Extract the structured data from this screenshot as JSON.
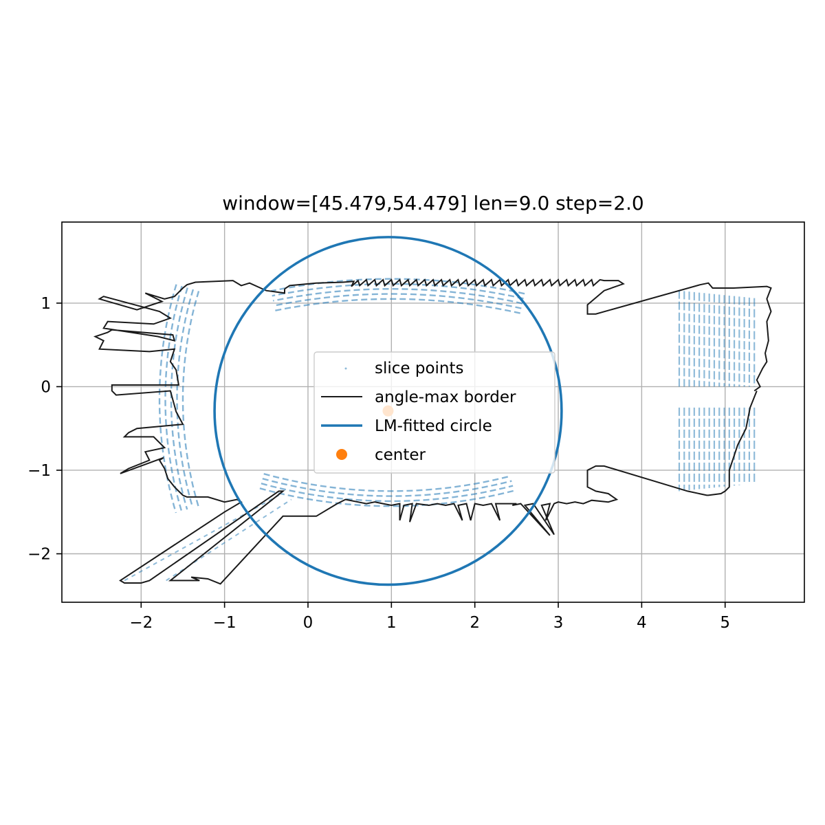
{
  "chart_data": {
    "type": "scatter",
    "title": "window=[45.479,54.479] len=9.0  step=2.0",
    "xlabel": "",
    "ylabel": "",
    "xlim": [
      -2.95,
      5.95
    ],
    "ylim": [
      -2.58,
      1.97
    ],
    "xticks": [
      -2,
      -1,
      0,
      1,
      2,
      3,
      4,
      5
    ],
    "yticks": [
      -2,
      -1,
      0,
      1
    ],
    "xtick_labels": [
      "−2",
      "−1",
      "0",
      "1",
      "2",
      "3",
      "4",
      "5"
    ],
    "ytick_labels": [
      "−2",
      "−1",
      "0",
      "1"
    ],
    "grid": true,
    "legend_position": "center",
    "legend": [
      {
        "label": "slice points",
        "kind": "points"
      },
      {
        "label": "angle-max border",
        "kind": "line"
      },
      {
        "label": "LM-fitted circle",
        "kind": "thick-line"
      },
      {
        "label": "center",
        "kind": "dot"
      }
    ],
    "colors": {
      "points": "#1f77b4",
      "border": "#1a1a1a",
      "circle": "#1f77b4",
      "center": "#ff7f0e"
    },
    "circle": {
      "center": [
        0.96,
        -0.29
      ],
      "radius": 2.08
    },
    "center_point": [
      0.96,
      -0.29
    ],
    "border_polyline": [
      [
        -0.28,
        1.17
      ],
      [
        -0.22,
        1.21
      ],
      [
        0.1,
        1.24
      ],
      [
        0.42,
        1.25
      ],
      [
        0.55,
        1.26
      ],
      [
        0.52,
        1.2
      ],
      [
        0.6,
        1.27
      ],
      [
        0.62,
        1.21
      ],
      [
        0.7,
        1.28
      ],
      [
        0.72,
        1.21
      ],
      [
        0.8,
        1.28
      ],
      [
        0.82,
        1.21
      ],
      [
        0.9,
        1.28
      ],
      [
        0.92,
        1.21
      ],
      [
        1.0,
        1.28
      ],
      [
        1.02,
        1.21
      ],
      [
        1.1,
        1.28
      ],
      [
        1.12,
        1.21
      ],
      [
        1.2,
        1.28
      ],
      [
        1.22,
        1.21
      ],
      [
        1.3,
        1.28
      ],
      [
        1.32,
        1.21
      ],
      [
        1.4,
        1.28
      ],
      [
        1.42,
        1.21
      ],
      [
        1.5,
        1.28
      ],
      [
        1.52,
        1.21
      ],
      [
        1.6,
        1.28
      ],
      [
        1.62,
        1.21
      ],
      [
        1.7,
        1.28
      ],
      [
        1.72,
        1.21
      ],
      [
        1.8,
        1.28
      ],
      [
        1.82,
        1.21
      ],
      [
        1.9,
        1.28
      ],
      [
        1.92,
        1.21
      ],
      [
        2.0,
        1.28
      ],
      [
        2.02,
        1.21
      ],
      [
        2.1,
        1.28
      ],
      [
        2.12,
        1.21
      ],
      [
        2.2,
        1.28
      ],
      [
        2.22,
        1.21
      ],
      [
        2.3,
        1.28
      ],
      [
        2.32,
        1.21
      ],
      [
        2.4,
        1.28
      ],
      [
        2.42,
        1.21
      ],
      [
        2.5,
        1.28
      ],
      [
        2.52,
        1.21
      ],
      [
        2.6,
        1.28
      ],
      [
        2.62,
        1.21
      ],
      [
        2.7,
        1.28
      ],
      [
        2.72,
        1.21
      ],
      [
        2.8,
        1.28
      ],
      [
        2.82,
        1.21
      ],
      [
        2.9,
        1.28
      ],
      [
        2.92,
        1.21
      ],
      [
        3.0,
        1.28
      ],
      [
        3.02,
        1.21
      ],
      [
        3.1,
        1.28
      ],
      [
        3.12,
        1.21
      ],
      [
        3.2,
        1.28
      ],
      [
        3.22,
        1.21
      ],
      [
        3.3,
        1.28
      ],
      [
        3.32,
        1.21
      ],
      [
        3.4,
        1.28
      ],
      [
        3.42,
        1.21
      ],
      [
        3.5,
        1.28
      ],
      [
        3.55,
        1.27
      ],
      [
        3.72,
        1.27
      ],
      [
        3.78,
        1.23
      ],
      [
        3.55,
        1.15
      ],
      [
        3.35,
        0.98
      ],
      [
        3.35,
        0.87
      ],
      [
        3.45,
        0.87
      ],
      [
        4.7,
        1.22
      ],
      [
        4.8,
        1.24
      ],
      [
        4.85,
        1.18
      ],
      [
        5.1,
        1.18
      ],
      [
        5.5,
        1.2
      ],
      [
        5.55,
        1.18
      ],
      [
        5.5,
        1.05
      ],
      [
        5.55,
        0.9
      ],
      [
        5.5,
        0.78
      ],
      [
        5.52,
        0.55
      ],
      [
        5.48,
        0.4
      ],
      [
        5.5,
        0.3
      ],
      [
        5.45,
        0.22
      ],
      [
        5.38,
        0.08
      ],
      [
        5.42,
        0.0
      ],
      [
        5.35,
        -0.05
      ]
    ],
    "border_polyline_lower": [
      [
        5.38,
        -0.05
      ],
      [
        5.3,
        -0.25
      ],
      [
        5.25,
        -0.5
      ],
      [
        5.15,
        -0.7
      ],
      [
        5.05,
        -1.0
      ],
      [
        5.05,
        -1.2
      ],
      [
        5.0,
        -1.25
      ],
      [
        4.95,
        -1.28
      ],
      [
        4.8,
        -1.3
      ],
      [
        4.78,
        -1.3
      ],
      [
        4.55,
        -1.25
      ],
      [
        3.55,
        -0.95
      ],
      [
        3.45,
        -0.95
      ],
      [
        3.35,
        -1.0
      ],
      [
        3.35,
        -1.2
      ],
      [
        3.45,
        -1.25
      ],
      [
        3.6,
        -1.28
      ],
      [
        3.7,
        -1.35
      ],
      [
        3.6,
        -1.38
      ],
      [
        3.4,
        -1.36
      ],
      [
        3.3,
        -1.4
      ],
      [
        3.2,
        -1.38
      ],
      [
        3.1,
        -1.4
      ],
      [
        3.0,
        -1.38
      ],
      [
        2.95,
        -1.4
      ],
      [
        2.85,
        -1.6
      ],
      [
        2.9,
        -1.4
      ],
      [
        2.8,
        -1.42
      ],
      [
        2.95,
        -1.77
      ],
      [
        2.7,
        -1.4
      ],
      [
        2.6,
        -1.42
      ],
      [
        2.9,
        -1.78
      ],
      [
        2.55,
        -1.4
      ],
      [
        2.45,
        -1.42
      ],
      [
        2.5,
        -1.4
      ],
      [
        2.25,
        -1.4
      ],
      [
        2.3,
        -1.6
      ],
      [
        2.2,
        -1.4
      ],
      [
        2.1,
        -1.42
      ],
      [
        2.0,
        -1.4
      ],
      [
        1.95,
        -1.6
      ],
      [
        1.9,
        -1.4
      ],
      [
        1.8,
        -1.42
      ],
      [
        1.85,
        -1.6
      ],
      [
        1.75,
        -1.4
      ],
      [
        1.65,
        -1.42
      ],
      [
        1.55,
        -1.4
      ],
      [
        1.45,
        -1.42
      ],
      [
        1.3,
        -1.4
      ],
      [
        1.22,
        -1.62
      ],
      [
        1.25,
        -1.4
      ],
      [
        1.15,
        -1.42
      ],
      [
        1.1,
        -1.6
      ],
      [
        1.1,
        -1.4
      ],
      [
        1.0,
        -1.42
      ],
      [
        0.9,
        -1.4
      ],
      [
        0.8,
        -1.38
      ],
      [
        0.7,
        -1.4
      ],
      [
        0.6,
        -1.38
      ],
      [
        0.45,
        -1.35
      ],
      [
        0.35,
        -1.4
      ],
      [
        0.1,
        -1.55
      ],
      [
        -0.1,
        -1.55
      ],
      [
        -0.3,
        -1.55
      ],
      [
        -1.05,
        -2.36
      ],
      [
        -1.2,
        -2.3
      ],
      [
        -1.4,
        -2.28
      ],
      [
        -1.3,
        -2.32
      ],
      [
        -1.65,
        -2.32
      ],
      [
        -0.3,
        -1.25
      ],
      [
        -0.35,
        -1.25
      ],
      [
        -1.9,
        -2.32
      ],
      [
        -2.0,
        -2.35
      ],
      [
        -2.2,
        -2.35
      ],
      [
        -2.25,
        -2.32
      ],
      [
        -1.0,
        -1.5
      ],
      [
        -0.8,
        -1.38
      ],
      [
        -0.85,
        -1.35
      ],
      [
        -1.0,
        -1.38
      ],
      [
        -1.2,
        -1.32
      ],
      [
        -1.45,
        -1.32
      ],
      [
        -1.5,
        -1.3
      ],
      [
        -1.55,
        -1.25
      ],
      [
        -1.6,
        -1.2
      ],
      [
        -1.68,
        -1.1
      ],
      [
        -1.72,
        -0.98
      ],
      [
        -1.78,
        -0.88
      ],
      [
        -1.73,
        -0.85
      ],
      [
        -2.25,
        -1.04
      ],
      [
        -2.15,
        -0.98
      ],
      [
        -1.9,
        -0.88
      ],
      [
        -1.95,
        -0.78
      ],
      [
        -1.72,
        -0.73
      ],
      [
        -1.85,
        -0.6
      ],
      [
        -2.2,
        -0.6
      ],
      [
        -2.15,
        -0.55
      ],
      [
        -2.05,
        -0.5
      ],
      [
        -1.5,
        -0.45
      ],
      [
        -1.58,
        -0.3
      ],
      [
        -1.65,
        -0.05
      ],
      [
        -2.3,
        -0.1
      ],
      [
        -2.35,
        -0.05
      ],
      [
        -2.35,
        0.02
      ],
      [
        -1.55,
        0.02
      ],
      [
        -1.58,
        0.2
      ],
      [
        -1.65,
        0.3
      ],
      [
        -1.6,
        0.45
      ],
      [
        -1.9,
        0.42
      ],
      [
        -2.5,
        0.45
      ],
      [
        -2.45,
        0.55
      ],
      [
        -2.55,
        0.6
      ],
      [
        -2.4,
        0.65
      ],
      [
        -2.35,
        0.68
      ],
      [
        -1.62,
        0.62
      ],
      [
        -1.6,
        0.55
      ],
      [
        -1.8,
        0.6
      ],
      [
        -2.45,
        0.7
      ],
      [
        -2.4,
        0.78
      ],
      [
        -1.85,
        0.75
      ],
      [
        -1.65,
        0.82
      ],
      [
        -1.78,
        0.9
      ],
      [
        -2.45,
        1.08
      ],
      [
        -2.5,
        1.05
      ],
      [
        -2.05,
        0.92
      ],
      [
        -1.75,
        1.02
      ],
      [
        -1.95,
        1.12
      ],
      [
        -1.72,
        1.05
      ],
      [
        -1.6,
        1.08
      ],
      [
        -1.5,
        1.18
      ],
      [
        -1.45,
        1.22
      ],
      [
        -1.35,
        1.25
      ],
      [
        -0.9,
        1.27
      ],
      [
        -0.8,
        1.21
      ],
      [
        -0.7,
        1.24
      ],
      [
        -0.5,
        1.15
      ],
      [
        -0.28,
        1.12
      ],
      [
        -0.28,
        1.17
      ]
    ]
  }
}
